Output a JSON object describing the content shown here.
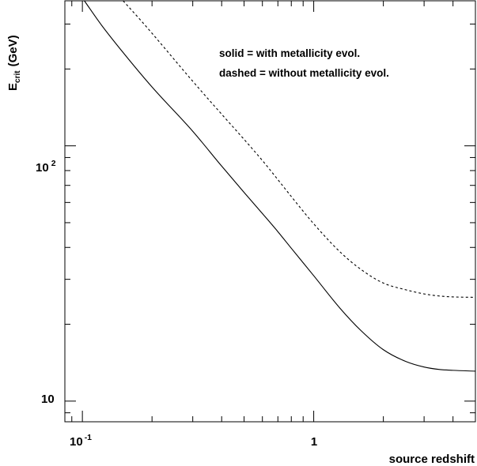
{
  "chart_data": {
    "type": "line",
    "xlabel": "source redshift",
    "ylabel": "E",
    "ylabel_sub": "crit",
    "ylabel_unit": "(GeV)",
    "x_scale": "log",
    "y_scale": "log",
    "xlim": [
      0.084,
      5.0
    ],
    "ylim": [
      8.3,
      370
    ],
    "grid": false,
    "x_ticks": [
      {
        "value": 0.1,
        "base": "10",
        "exp": "-1"
      },
      {
        "value": 1,
        "base": "1",
        "exp": ""
      }
    ],
    "y_ticks": [
      {
        "value": 10,
        "base": "10",
        "exp": ""
      },
      {
        "value": 100,
        "base": "10",
        "exp": "2"
      }
    ],
    "annotations": [
      "solid = with metallicity evol.",
      "dashed = without metallicity evol."
    ],
    "series": [
      {
        "style": "solid",
        "color": "#000000",
        "points": [
          [
            0.102,
            370
          ],
          [
            0.12,
            300
          ],
          [
            0.15,
            232
          ],
          [
            0.2,
            170
          ],
          [
            0.3,
            114
          ],
          [
            0.4,
            83.3
          ],
          [
            0.5,
            65.7
          ],
          [
            0.6,
            54.3
          ],
          [
            0.7,
            46.1
          ],
          [
            0.8,
            39.7
          ],
          [
            1.0,
            31.0
          ],
          [
            1.3,
            23.1
          ],
          [
            1.6,
            18.9
          ],
          [
            2.0,
            15.9
          ],
          [
            2.5,
            14.3
          ],
          [
            3.0,
            13.6
          ],
          [
            3.5,
            13.3
          ],
          [
            4.0,
            13.2
          ],
          [
            5.0,
            13.1
          ]
        ]
      },
      {
        "style": "dashed",
        "color": "#000000",
        "points": [
          [
            0.15,
            370
          ],
          [
            0.18,
            308
          ],
          [
            0.2,
            276
          ],
          [
            0.3,
            179
          ],
          [
            0.4,
            133
          ],
          [
            0.5,
            106
          ],
          [
            0.6,
            87.6
          ],
          [
            0.7,
            73.7
          ],
          [
            0.8,
            63.3
          ],
          [
            1.0,
            49.5
          ],
          [
            1.3,
            38.4
          ],
          [
            1.6,
            32.8
          ],
          [
            2.0,
            29.0
          ],
          [
            2.5,
            27.3
          ],
          [
            3.0,
            26.3
          ],
          [
            3.5,
            25.8
          ],
          [
            4.0,
            25.6
          ],
          [
            5.0,
            25.5
          ]
        ]
      }
    ]
  }
}
